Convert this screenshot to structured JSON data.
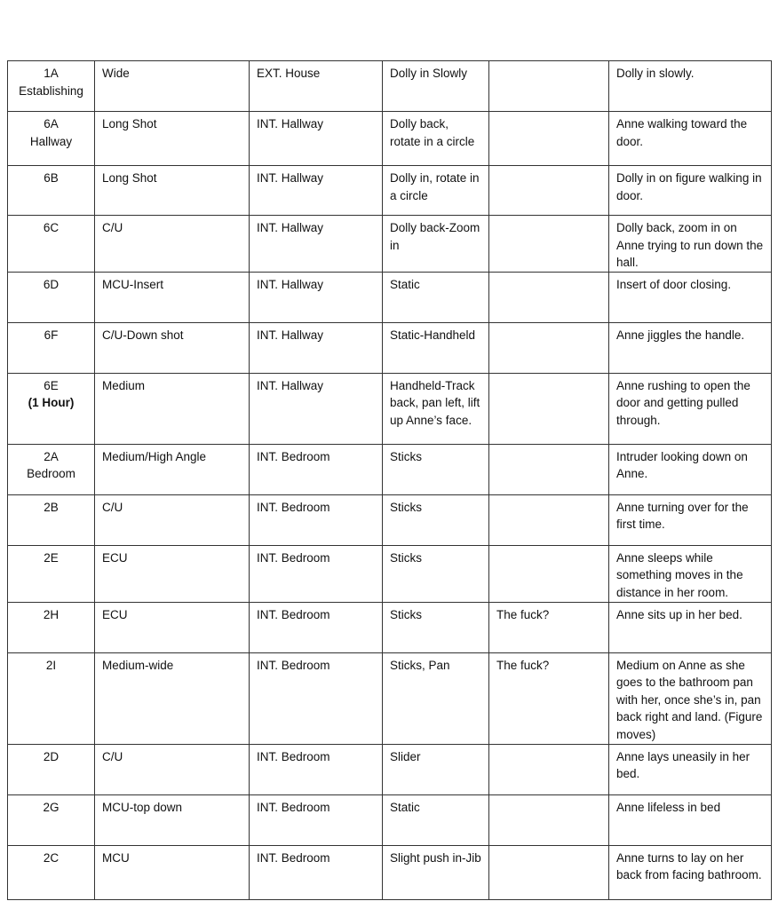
{
  "table": {
    "rows": [
      {
        "shot": [
          "1A",
          "Establishing"
        ],
        "cells": [
          "Wide",
          "EXT. House",
          "Dolly in Slowly",
          null,
          "Dolly in slowly."
        ]
      },
      {
        "shot": [
          "6A",
          "Hallway"
        ],
        "cells": [
          "Long Shot",
          "INT. Hallway",
          "Dolly back, rotate in a circle",
          null,
          "Anne walking toward the door."
        ]
      },
      {
        "shot": [
          "6B"
        ],
        "cells": [
          "Long Shot",
          "INT. Hallway",
          "Dolly in, rotate in a circle",
          null,
          "Dolly in on figure walking in door."
        ]
      },
      {
        "shot": [
          "6C"
        ],
        "cells": [
          "C/U",
          "INT. Hallway",
          "Dolly back-Zoom in",
          null,
          "Dolly back, zoom in on Anne trying to run down the hall."
        ]
      },
      {
        "shot": [
          "6D"
        ],
        "cells": [
          "MCU-Insert",
          "INT. Hallway",
          "Static",
          null,
          "Insert of door closing."
        ]
      },
      {
        "shot": [
          "6F"
        ],
        "cells": [
          "C/U-Down shot",
          "INT. Hallway",
          "Static-Handheld",
          null,
          "Anne jiggles the handle."
        ]
      },
      {
        "shot": [
          "6E",
          "(1 Hour)"
        ],
        "cells": [
          "Medium",
          "INT. Hallway",
          "Handheld-Track back, pan left, lift up Anne’s face.",
          null,
          "Anne rushing to open the door and getting pulled through."
        ]
      },
      {
        "shot": [
          "2A",
          "Bedroom"
        ],
        "cells": [
          "Medium/High Angle",
          "INT. Bedroom",
          "Sticks",
          null,
          "Intruder looking down on Anne."
        ]
      },
      {
        "shot": [
          "2B"
        ],
        "cells": [
          "C/U",
          "INT. Bedroom",
          "Sticks",
          null,
          "Anne turning over for the first time."
        ]
      },
      {
        "shot": [
          "2E"
        ],
        "cells": [
          "ECU",
          "INT. Bedroom",
          "Sticks",
          null,
          "Anne sleeps while something moves in the distance in her room."
        ]
      },
      {
        "shot": [
          "2H"
        ],
        "cells": [
          "ECU",
          "INT. Bedroom",
          "Sticks",
          "The fuck?",
          "Anne sits up in her bed."
        ]
      },
      {
        "shot": [
          "2I"
        ],
        "cells": [
          "Medium-wide",
          "INT. Bedroom",
          "Sticks, Pan",
          "The fuck?",
          "Medium on Anne as she goes to the bathroom pan with her, once she’s in, pan back right and land. (Figure moves)"
        ]
      },
      {
        "shot": [
          "2D"
        ],
        "cells": [
          "C/U",
          "INT. Bedroom",
          "Slider",
          null,
          "Anne lays uneasily in her bed."
        ]
      },
      {
        "shot": [
          "2G"
        ],
        "cells": [
          "MCU-top down",
          "INT. Bedroom",
          "Static",
          null,
          "Anne lifeless in bed"
        ]
      },
      {
        "shot": [
          "2C"
        ],
        "cells": [
          "MCU",
          "INT. Bedroom",
          "Slight push in-Jib",
          null,
          "Anne turns to lay on her back from facing bathroom."
        ]
      }
    ]
  }
}
